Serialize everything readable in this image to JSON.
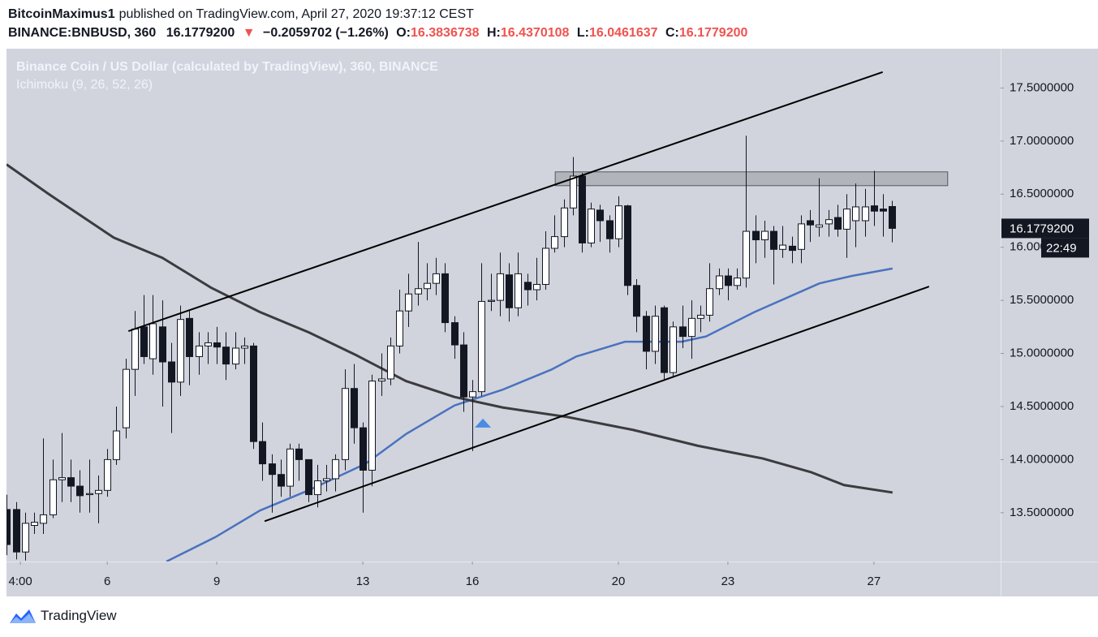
{
  "header": {
    "author": "BitcoinMaximus1",
    "published": "published on TradingView.com, April 27, 2020 19:37:12 CEST",
    "symbol": "BINANCE:BNBUSD, 360",
    "price": "16.1779200",
    "arrow": "▼",
    "change": "−0.2059702 (−1.26%)",
    "o_label": "O:",
    "o": "16.3836738",
    "h_label": "H:",
    "h": "16.4370108",
    "l_label": "L:",
    "l": "16.0461637",
    "c_label": "C:",
    "c": "16.1779200"
  },
  "footer": {
    "brand": "TradingView"
  },
  "chart_data": {
    "type": "candlestick",
    "title": "Binance Coin / US Dollar (calculated by TradingView), 360, BINANCE",
    "subtitle": "Ichimoku (9, 26, 52, 26)",
    "up_color": "#ffffff",
    "down_color": "#131722",
    "edge_color": "#131722",
    "x": [
      3.25,
      3.5,
      3.75,
      4,
      4.25,
      4.5,
      4.75,
      5,
      5.25,
      5.5,
      5.75,
      6,
      6.25,
      6.5,
      6.75,
      7,
      7.25,
      7.5,
      7.75,
      8,
      8.25,
      8.5,
      8.75,
      9,
      9.25,
      9.5,
      9.75,
      10,
      10.25,
      10.5,
      10.75,
      11,
      11.25,
      11.5,
      11.75,
      12,
      12.25,
      12.5,
      12.75,
      13,
      13.25,
      13.5,
      13.75,
      14,
      14.25,
      14.5,
      14.75,
      15,
      15.25,
      15.5,
      15.75,
      16,
      16.25,
      16.5,
      16.75,
      17,
      17.25,
      17.5,
      17.75,
      18,
      18.25,
      18.5,
      18.75,
      19,
      19.25,
      19.5,
      19.75,
      20,
      20.25,
      20.5,
      20.75,
      21,
      21.25,
      21.5,
      21.75,
      22,
      22.25,
      22.5,
      22.75,
      23,
      23.25,
      23.5,
      23.75,
      24,
      24.25,
      24.5,
      24.75,
      25,
      25.25,
      25.5,
      25.75,
      26,
      26.25,
      26.5,
      26.75,
      27,
      27.25,
      27.5
    ],
    "open": [
      13.53,
      13.53,
      13.13,
      13.38,
      13.4,
      13.48,
      13.81,
      13.83,
      13.75,
      13.67,
      13.68,
      13.71,
      14.0,
      14.3,
      14.85,
      15.25,
      14.95,
      15.25,
      14.92,
      14.73,
      15.33,
      14.97,
      15.07,
      15.1,
      15.06,
      14.9,
      15.05,
      15.07,
      14.17,
      13.96,
      13.86,
      13.75,
      14.1,
      14.0,
      13.67,
      13.8,
      13.82,
      14.0,
      14.67,
      14.3,
      13.9,
      14.74,
      14.76,
      15.07,
      15.4,
      15.56,
      15.61,
      15.66,
      15.75,
      15.29,
      15.08,
      14.59,
      14.64,
      15.49,
      15.5,
      15.74,
      15.43,
      15.67,
      15.6,
      15.65,
      15.99,
      16.1,
      16.37,
      16.67,
      16.04,
      16.35,
      16.25,
      16.08,
      16.39,
      15.64,
      15.35,
      15.02,
      15.43,
      14.82,
      15.25,
      15.16,
      15.33,
      15.36,
      15.61,
      15.73,
      15.64,
      15.71,
      16.15,
      16.07,
      16.15,
      15.98,
      16.01,
      15.98,
      16.25,
      16.19,
      16.22,
      16.28,
      16.17,
      16.25,
      16.25,
      16.39,
      16.36,
      16.3836738
    ],
    "high": [
      13.67,
      13.6,
      13.5,
      13.5,
      14.2,
      14.0,
      14.25,
      14.0,
      13.9,
      14.0,
      13.85,
      14.1,
      14.5,
      14.95,
      15.4,
      15.55,
      15.55,
      15.5,
      15.1,
      15.45,
      15.4,
      15.2,
      15.2,
      15.25,
      15.2,
      15.2,
      15.15,
      15.1,
      14.35,
      14.05,
      14.0,
      14.15,
      14.15,
      14.0,
      13.95,
      13.95,
      14.05,
      14.85,
      14.9,
      14.35,
      14.8,
      15.0,
      15.15,
      15.6,
      15.75,
      16.05,
      15.85,
      15.9,
      15.85,
      15.35,
      15.2,
      14.75,
      15.85,
      15.75,
      15.95,
      15.85,
      15.95,
      15.75,
      15.9,
      16.15,
      16.3,
      16.45,
      16.85,
      16.7,
      16.42,
      16.4,
      16.3,
      16.48,
      16.4,
      15.7,
      15.4,
      15.45,
      15.45,
      15.3,
      15.45,
      15.5,
      15.45,
      15.85,
      15.8,
      15.8,
      15.8,
      17.05,
      16.3,
      16.25,
      16.2,
      16.2,
      16.1,
      16.3,
      16.35,
      16.65,
      16.35,
      16.4,
      16.5,
      16.6,
      16.55,
      16.72,
      16.5,
      16.4370108
    ],
    "low": [
      13.1,
      13.06,
      13.05,
      13.3,
      13.3,
      13.45,
      13.6,
      13.6,
      13.5,
      13.5,
      13.4,
      13.65,
      13.95,
      14.2,
      14.6,
      14.9,
      14.8,
      14.5,
      14.25,
      14.6,
      14.7,
      14.8,
      14.9,
      14.9,
      14.75,
      14.85,
      14.9,
      14.1,
      13.8,
      13.5,
      13.65,
      13.65,
      13.8,
      13.6,
      13.55,
      13.7,
      13.7,
      13.9,
      14.15,
      13.5,
      13.75,
      14.6,
      14.7,
      15.0,
      15.25,
      15.45,
      15.5,
      15.55,
      15.2,
      14.95,
      14.45,
      14.08,
      14.6,
      15.4,
      15.35,
      15.3,
      15.35,
      15.45,
      15.5,
      15.6,
      15.95,
      16.0,
      16.3,
      15.95,
      16.0,
      16.05,
      15.95,
      16.0,
      15.55,
      15.2,
      14.85,
      14.9,
      14.75,
      14.78,
      15.05,
      14.95,
      15.2,
      15.3,
      15.55,
      15.5,
      15.6,
      15.62,
      15.85,
      15.9,
      15.65,
      15.9,
      15.85,
      15.85,
      16.05,
      16.1,
      16.1,
      16.1,
      15.9,
      16.0,
      16.1,
      16.2,
      16.1,
      16.0461637
    ],
    "close": [
      13.2,
      13.13,
      13.4,
      13.41,
      13.48,
      13.81,
      13.83,
      13.75,
      13.66,
      13.68,
      13.71,
      14.0,
      14.27,
      14.85,
      15.23,
      14.97,
      15.28,
      14.92,
      14.73,
      15.32,
      14.97,
      15.07,
      15.1,
      15.06,
      14.9,
      15.05,
      15.07,
      14.17,
      13.96,
      13.86,
      13.75,
      14.1,
      14.0,
      13.67,
      13.8,
      13.82,
      14.0,
      14.67,
      14.3,
      13.9,
      14.74,
      14.76,
      15.07,
      15.4,
      15.56,
      15.61,
      15.66,
      15.75,
      15.29,
      15.08,
      14.59,
      14.64,
      15.49,
      15.5,
      15.75,
      15.43,
      15.75,
      15.6,
      15.65,
      15.99,
      16.1,
      16.37,
      16.67,
      16.04,
      16.36,
      16.25,
      16.08,
      16.39,
      15.64,
      15.35,
      15.02,
      15.35,
      14.82,
      15.25,
      15.16,
      15.33,
      15.36,
      15.61,
      15.73,
      15.64,
      15.71,
      16.15,
      16.07,
      16.15,
      15.98,
      16.02,
      15.97,
      16.22,
      16.21,
      16.21,
      16.26,
      16.17,
      16.36,
      16.38,
      16.38,
      16.34,
      16.34,
      16.17792
    ],
    "lines": [
      {
        "color": "#4a72c0",
        "x": [
          7.62,
          8.96,
          10.18,
          11.51,
          13.07,
          14.18,
          15.51,
          16.84,
          18.18,
          18.84,
          20.18,
          21.73,
          22.4,
          23.73,
          25.51,
          26.4,
          27.51
        ],
        "values": [
          13.04,
          13.27,
          13.52,
          13.71,
          13.96,
          14.24,
          14.51,
          14.66,
          14.85,
          14.97,
          15.11,
          15.11,
          15.16,
          15.39,
          15.66,
          15.73,
          15.8
        ]
      },
      {
        "color": "#3b3b40",
        "x": [
          3.24,
          4.4,
          6.18,
          7.51,
          8.84,
          10.18,
          11.51,
          12.84,
          14.18,
          15.51,
          16.84,
          18.62,
          20.4,
          22.18,
          23.96,
          25.29,
          26.18,
          27.51
        ],
        "values": [
          16.78,
          16.5,
          16.09,
          15.9,
          15.62,
          15.39,
          15.2,
          14.98,
          14.74,
          14.59,
          14.49,
          14.4,
          14.28,
          14.13,
          14.01,
          13.88,
          13.76,
          13.69
        ]
      }
    ],
    "trendlines": [
      {
        "color": "#000000",
        "x": [
          6.58,
          27.24
        ],
        "values": [
          15.21,
          17.65
        ]
      },
      {
        "color": "#000000",
        "x": [
          10.31,
          28.51
        ],
        "values": [
          13.42,
          15.63
        ]
      }
    ],
    "zone": {
      "color": "#a7a9b0",
      "x": [
        18.27,
        29.02
      ],
      "values": [
        16.71,
        16.58
      ]
    },
    "marker": {
      "color": "#4a8be5",
      "x": 16.29,
      "value": 14.34
    },
    "xlim": [
      3.24,
      30.47
    ],
    "xticks": [
      {
        "value": 3.62,
        "label": "4:00"
      },
      6,
      9,
      13,
      16,
      20,
      23,
      27
    ],
    "ylim": [
      13.04,
      17.87
    ],
    "yticks": [
      {
        "value": 13.5,
        "label": "13.5000000"
      },
      {
        "value": 14,
        "label": "14.0000000"
      },
      {
        "value": 14.5,
        "label": "14.5000000"
      },
      {
        "value": 15,
        "label": "15.0000000"
      },
      {
        "value": 15.5,
        "label": "15.5000000"
      },
      {
        "value": 16,
        "label": "16.0000000"
      },
      {
        "value": 16.5,
        "label": "16.5000000"
      },
      {
        "value": 17,
        "label": "17.0000000"
      },
      {
        "value": 17.5,
        "label": "17.5000000"
      }
    ],
    "last_price": {
      "value": 16.17792,
      "label": "16.1779200"
    },
    "countdown": "22:49"
  }
}
